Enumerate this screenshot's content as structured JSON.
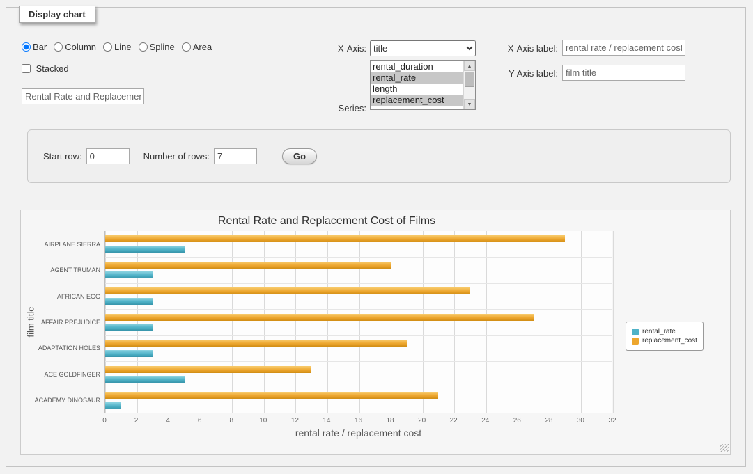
{
  "fieldset_legend": "Display chart",
  "controls": {
    "chart_types": [
      {
        "label": "Bar",
        "checked": true
      },
      {
        "label": "Column",
        "checked": false
      },
      {
        "label": "Line",
        "checked": false
      },
      {
        "label": "Spline",
        "checked": false
      },
      {
        "label": "Area",
        "checked": false
      }
    ],
    "stacked_label": "Stacked",
    "title_value": "Rental Rate and Replacement Cost of Films",
    "x_axis": {
      "label": "X-Axis:",
      "selected": "title",
      "options": [
        "title"
      ]
    },
    "series": {
      "label": "Series:",
      "options": [
        {
          "label": "rental_duration",
          "selected": false
        },
        {
          "label": "rental_rate",
          "selected": true
        },
        {
          "label": "length",
          "selected": false
        },
        {
          "label": "replacement_cost",
          "selected": true
        }
      ]
    },
    "x_axis_label": {
      "label": "X-Axis label:",
      "value": "rental rate / replacement cost"
    },
    "y_axis_label": {
      "label": "Y-Axis label:",
      "value": "film title"
    }
  },
  "rows_panel": {
    "start_row_label": "Start row:",
    "start_row_value": "0",
    "num_rows_label": "Number of rows:",
    "num_rows_value": "7",
    "go_label": "Go"
  },
  "chart_data": {
    "type": "bar",
    "title": "Rental Rate and Replacement Cost of Films",
    "categories": [
      "AIRPLANE SIERRA",
      "AGENT TRUMAN",
      "AFRICAN EGG",
      "AFFAIR PREJUDICE",
      "ADAPTATION HOLES",
      "ACE GOLDFINGER",
      "ACADEMY DINOSAUR"
    ],
    "series": [
      {
        "name": "rental_rate",
        "color": "#4fb2c7",
        "color_light": "#8ed4e2",
        "color_dark": "#3795ab",
        "values": [
          4.99,
          2.99,
          2.99,
          2.99,
          2.99,
          4.99,
          0.99
        ]
      },
      {
        "name": "replacement_cost",
        "color": "#eda62e",
        "color_light": "#f8cb6d",
        "color_dark": "#d18d14",
        "values": [
          28.99,
          17.99,
          22.99,
          26.99,
          18.99,
          12.99,
          20.99
        ]
      }
    ],
    "xlabel": "rental rate / replacement cost",
    "ylabel": "film title",
    "xlim": [
      0,
      32
    ],
    "xtick_step": 2,
    "legend_position": "right",
    "grid": true
  }
}
